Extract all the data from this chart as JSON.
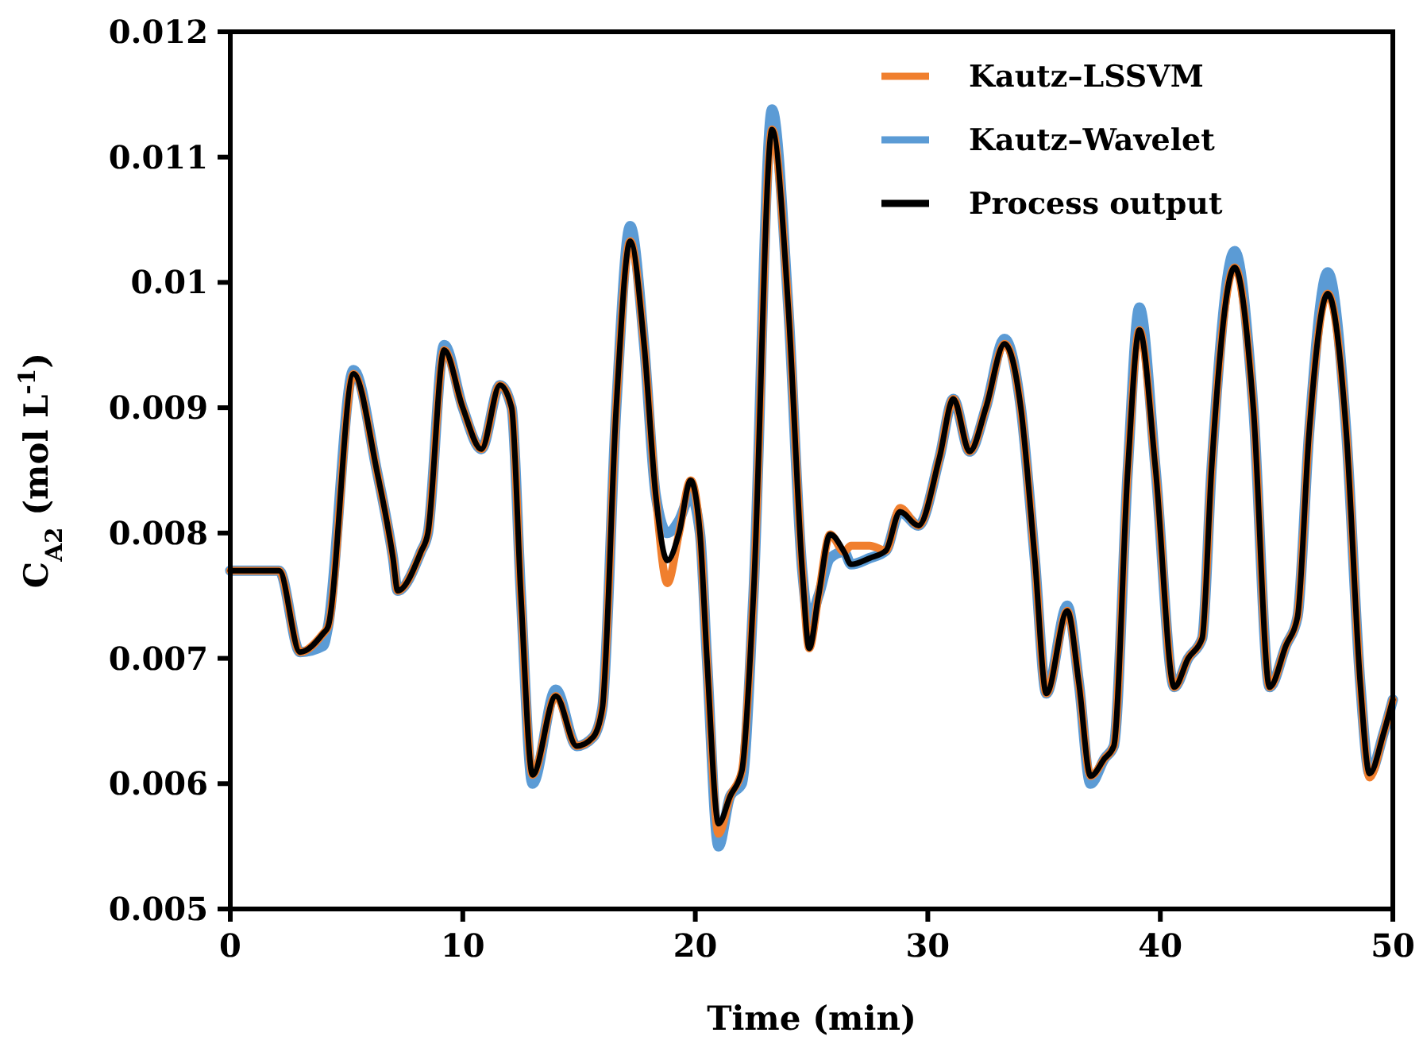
{
  "chart_data": {
    "type": "line",
    "xlabel": "Time (min)",
    "ylabel": "C$_{A2}$ (mol L$^{-1}$)",
    "x": [
      0,
      2.1,
      3.0,
      4.0,
      4.2,
      5.3,
      6.3,
      7.0,
      7.2,
      8.2,
      8.5,
      9.2,
      10.0,
      10.8,
      11.6,
      12.1,
      12.5,
      13.0,
      14.0,
      14.9,
      15.6,
      16.0,
      16.6,
      17.2,
      17.8,
      18.3,
      18.8,
      19.3,
      19.8,
      20.2,
      20.5,
      21.0,
      21.5,
      22.0,
      22.5,
      23.3,
      24.0,
      24.6,
      24.9,
      25.3,
      25.8,
      26.4,
      26.7,
      27.5,
      28.2,
      28.8,
      29.6,
      30.5,
      31.1,
      31.8,
      32.5,
      33.3,
      34.0,
      34.6,
      35.1,
      36.0,
      36.5,
      37.0,
      37.6,
      38.0,
      38.6,
      39.1,
      39.8,
      40.6,
      41.2,
      41.8,
      42.2,
      43.2,
      44.0,
      44.7,
      45.4,
      45.9,
      46.4,
      47.2,
      48.0,
      48.6,
      49.0,
      49.6,
      50
    ],
    "series": [
      {
        "name": "Kautz–LSSVM",
        "color": "#f07f2e",
        "values": [
          0.0077,
          0.0077,
          0.00705,
          0.0072,
          0.00725,
          0.00927,
          0.0085,
          0.0078,
          0.00754,
          0.00785,
          0.008,
          0.00946,
          0.009,
          0.00867,
          0.00918,
          0.009,
          0.0075,
          0.00607,
          0.0067,
          0.0063,
          0.00637,
          0.0066,
          0.009,
          0.01033,
          0.0095,
          0.0083,
          0.0076,
          0.008,
          0.00842,
          0.008,
          0.007,
          0.0056,
          0.0059,
          0.0061,
          0.0075,
          0.01122,
          0.0098,
          0.0077,
          0.00708,
          0.0075,
          0.00799,
          0.00785,
          0.0079,
          0.0079,
          0.00786,
          0.0082,
          0.00806,
          0.0086,
          0.00907,
          0.00865,
          0.009,
          0.00951,
          0.009,
          0.0078,
          0.00672,
          0.00738,
          0.0068,
          0.00606,
          0.0062,
          0.0063,
          0.0085,
          0.00962,
          0.0085,
          0.00677,
          0.007,
          0.00716,
          0.0085,
          0.01012,
          0.009,
          0.00677,
          0.0071,
          0.00733,
          0.0088,
          0.00991,
          0.0088,
          0.0068,
          0.00605,
          0.0064,
          0.00667
        ]
      },
      {
        "name": "Kautz–Wavelet",
        "color": "#5b9bd5",
        "values": [
          0.0077,
          0.0077,
          0.00705,
          0.0071,
          0.00725,
          0.0093,
          0.0085,
          0.0078,
          0.00754,
          0.00785,
          0.008,
          0.0095,
          0.009,
          0.00867,
          0.00918,
          0.009,
          0.0075,
          0.006,
          0.00675,
          0.0063,
          0.00637,
          0.0066,
          0.009,
          0.01045,
          0.0095,
          0.0083,
          0.008,
          0.0081,
          0.0083,
          0.008,
          0.007,
          0.0055,
          0.0059,
          0.006,
          0.0075,
          0.01138,
          0.0098,
          0.0077,
          0.0073,
          0.0075,
          0.0078,
          0.00785,
          0.00775,
          0.0078,
          0.00786,
          0.00817,
          0.00806,
          0.0086,
          0.00907,
          0.00865,
          0.009,
          0.00955,
          0.009,
          0.0078,
          0.00672,
          0.00742,
          0.0068,
          0.006,
          0.0062,
          0.0063,
          0.0085,
          0.0098,
          0.0085,
          0.00677,
          0.007,
          0.00716,
          0.0085,
          0.01025,
          0.009,
          0.00677,
          0.0071,
          0.00733,
          0.0088,
          0.01008,
          0.0088,
          0.0068,
          0.00608,
          0.0064,
          0.00667
        ]
      },
      {
        "name": "Process output",
        "color": "#000000",
        "values": [
          0.0077,
          0.0077,
          0.00705,
          0.0072,
          0.00725,
          0.00927,
          0.0085,
          0.0078,
          0.00754,
          0.00785,
          0.008,
          0.00946,
          0.009,
          0.00867,
          0.00918,
          0.009,
          0.0075,
          0.00607,
          0.0067,
          0.0063,
          0.00637,
          0.0066,
          0.009,
          0.01033,
          0.0095,
          0.0083,
          0.00778,
          0.008,
          0.00842,
          0.008,
          0.007,
          0.00568,
          0.0059,
          0.0061,
          0.0075,
          0.01122,
          0.0098,
          0.0077,
          0.00708,
          0.0075,
          0.00799,
          0.00785,
          0.00775,
          0.0078,
          0.00786,
          0.00817,
          0.00806,
          0.0086,
          0.00907,
          0.00865,
          0.009,
          0.00951,
          0.009,
          0.0078,
          0.00672,
          0.00738,
          0.0068,
          0.00606,
          0.0062,
          0.0063,
          0.0085,
          0.00962,
          0.0085,
          0.00677,
          0.007,
          0.00716,
          0.0085,
          0.01012,
          0.009,
          0.00677,
          0.0071,
          0.00733,
          0.0088,
          0.00991,
          0.0088,
          0.0068,
          0.00608,
          0.0064,
          0.00667
        ]
      }
    ],
    "xlim": [
      0,
      50
    ],
    "xticks": [
      0,
      10,
      20,
      30,
      40,
      50
    ],
    "ylim": [
      0.005,
      0.012
    ],
    "yticks": [
      0.005,
      0.006,
      0.007,
      0.008,
      0.009,
      0.01,
      0.011,
      0.012
    ],
    "grid": false,
    "legend": "top right",
    "marker": "none",
    "line_style": "solid"
  }
}
